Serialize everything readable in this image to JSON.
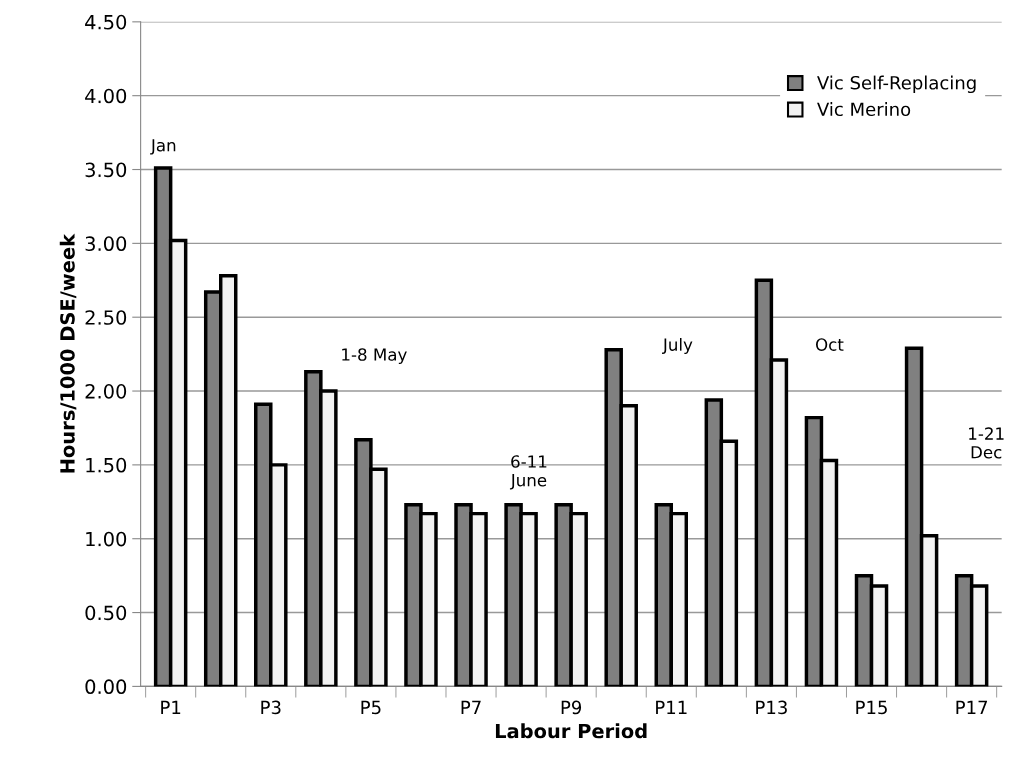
{
  "chart_data": {
    "type": "bar",
    "xlabel": "Labour Period",
    "ylabel": "Hours/1000 DSE/week",
    "categories": [
      "P1",
      null,
      "P3",
      null,
      "P5",
      null,
      "P7",
      null,
      "P9",
      null,
      "P11",
      null,
      "P13",
      null,
      "P15",
      null,
      "P17"
    ],
    "series": [
      {
        "name": "Vic Self-Replacing",
        "color": "#808080",
        "values": [
          3.51,
          2.67,
          1.91,
          2.13,
          1.67,
          1.23,
          1.23,
          1.23,
          1.23,
          2.28,
          1.23,
          1.94,
          2.75,
          1.82,
          0.75,
          2.29,
          0.75
        ]
      },
      {
        "name": "Vic Merino",
        "color": "#f2f2f2",
        "values": [
          3.02,
          2.78,
          1.5,
          2.0,
          1.47,
          1.17,
          1.17,
          1.17,
          1.17,
          1.9,
          1.17,
          1.66,
          2.21,
          1.53,
          0.68,
          1.02,
          0.68
        ]
      }
    ],
    "ylim": [
      0,
      4.5
    ],
    "yticks": [
      {
        "value": 0,
        "label": "0.00"
      },
      {
        "value": 0.5,
        "label": "0.50"
      },
      {
        "value": 1,
        "label": "1.00"
      },
      {
        "value": 1.5,
        "label": "1.50"
      },
      {
        "value": 2,
        "label": "2.00"
      },
      {
        "value": 2.5,
        "label": "2.50"
      },
      {
        "value": 3,
        "label": "3.00"
      },
      {
        "value": 3.5,
        "label": "3.50"
      },
      {
        "value": 4,
        "label": "4.00"
      },
      {
        "value": 4.5,
        "label": "4.50"
      }
    ],
    "annotations": [
      "Jan",
      "1-8 May",
      "6-11\nJune",
      "July",
      "Oct",
      "1-21\nDec"
    ],
    "grid": "y",
    "legend": "top right"
  }
}
